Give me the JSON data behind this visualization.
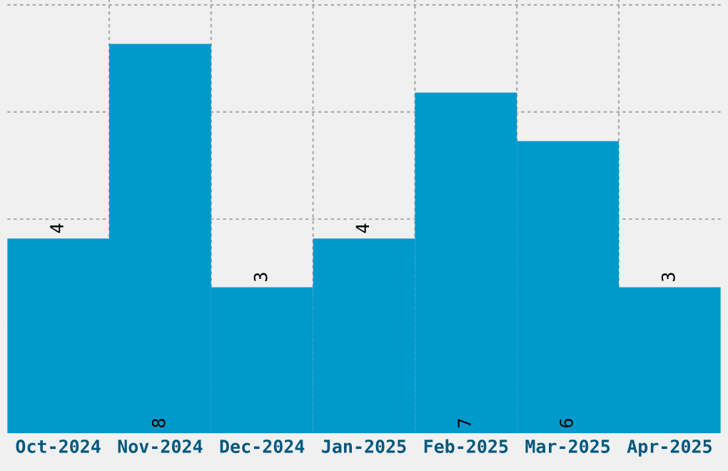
{
  "chart_data": {
    "type": "bar",
    "categories": [
      "Oct-2024",
      "Nov-2024",
      "Dec-2024",
      "Jan-2025",
      "Feb-2025",
      "Mar-2025",
      "Apr-2025"
    ],
    "values": [
      4,
      8,
      3,
      4,
      7,
      6,
      3
    ],
    "color": "#0099cc",
    "ylim": [
      0,
      8.9
    ],
    "yticks": [
      {
        "value": 2.2,
        "label": null
      },
      {
        "value": 4.4,
        "label": null
      },
      {
        "value": 6.6,
        "label": null
      },
      {
        "value": 8.8,
        "label": null
      }
    ],
    "tick_labels": "x",
    "grid": true,
    "data_labels": true
  }
}
